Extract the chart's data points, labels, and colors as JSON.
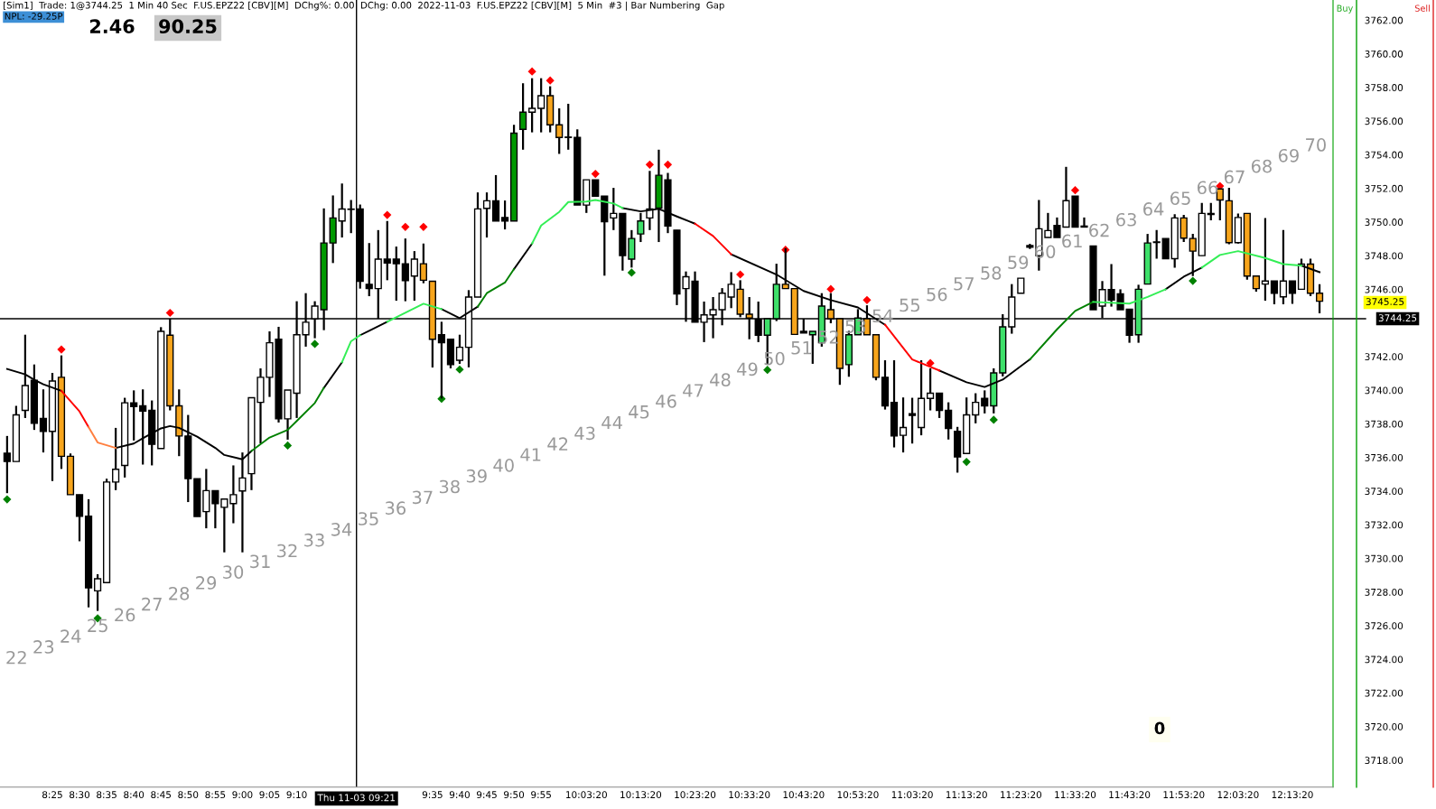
{
  "chart_data": {
    "type": "candlestick",
    "title": "[Sim1]  Trade: 1@3744.25  1 Min 40 Sec  F.US.EPZ22 [CBV][M]  DChg%: 0.00  DChg: 0.00  2022-11-03  F.US.EPZ22 [CBV][M]  5 Min  #3 | Bar Numbering  Gap",
    "subtitle": "NPL: -29.25P",
    "x": [
      8.2778,
      8.3056,
      8.3333,
      8.3611,
      8.3889,
      8.4167,
      8.4444,
      8.4722,
      8.5,
      8.5278,
      8.5556,
      8.5833,
      8.6111,
      8.6389,
      8.6667,
      8.6944,
      8.7222,
      8.75,
      8.7778,
      8.8056,
      8.8333,
      8.8611,
      8.8889,
      8.9167,
      8.9444,
      8.9722,
      9.0,
      9.0278,
      9.0556,
      9.0833,
      9.1111,
      9.1389,
      9.1667,
      9.1944,
      9.2222,
      9.25,
      9.2778,
      9.3056,
      9.3333,
      9.3611,
      9.3889,
      9.4167,
      9.4444,
      9.4722,
      9.5,
      9.5278,
      9.5556,
      9.5833,
      9.6111,
      9.6389,
      9.6667,
      9.6944,
      9.7222,
      9.75,
      9.7778,
      9.8056,
      9.8333,
      9.8611,
      9.8889,
      9.9167,
      9.9444,
      9.9722,
      10.0,
      10.0278,
      10.0556,
      10.0833,
      10.1111,
      10.1389,
      10.1667,
      10.1944,
      10.2222,
      10.25,
      10.2778,
      10.3056,
      10.3333,
      10.3611,
      10.3889,
      10.4167,
      10.4444,
      10.4722,
      10.5,
      10.5278,
      10.5556,
      10.5833,
      10.6111,
      10.6389,
      10.6667,
      10.6944,
      10.7222,
      10.75,
      10.7778,
      10.8056,
      10.8333,
      10.8611,
      10.8889,
      10.9167,
      10.9444,
      10.9722,
      11.0,
      11.0278,
      11.0556,
      11.0833,
      11.1111,
      11.1389,
      11.1667,
      11.1944,
      11.2222,
      11.25,
      11.2778,
      11.3056,
      11.3333,
      11.3611,
      11.3889,
      11.4167,
      11.4444,
      11.4722,
      11.5,
      11.5278,
      11.5556,
      11.5833,
      11.6111,
      11.6389,
      11.6667,
      11.6944,
      11.7222,
      11.75,
      11.7778,
      11.8056,
      11.8333,
      11.8611,
      11.8889,
      11.9167,
      11.9444,
      11.9722,
      12.0,
      12.0278,
      12.0556,
      12.0833,
      12.1111,
      12.1389,
      12.1667,
      12.1944,
      12.2222,
      12.25,
      12.2778,
      12.3056
    ],
    "ohlc": [
      [
        3736.26,
        3737.28,
        3733.88,
        3735.76
      ],
      [
        3735.76,
        3739.07,
        3735.76,
        3738.53
      ],
      [
        3738.8,
        3743.3,
        3738.35,
        3740.28
      ],
      [
        3740.59,
        3741.53,
        3737.64,
        3738.03
      ],
      [
        3738.32,
        3740.05,
        3736.3,
        3737.55
      ],
      [
        3737.55,
        3741.03,
        3734.6,
        3740.55
      ],
      [
        3740.77,
        3742.07,
        3735.32,
        3736.07
      ],
      [
        3736.07,
        3736.24,
        3733.79,
        3733.79
      ],
      [
        3733.79,
        3733.79,
        3731.02,
        3732.51
      ],
      [
        3732.51,
        3733.52,
        3727.09,
        3728.25
      ],
      [
        3728.07,
        3729.06,
        3726.88,
        3728.79
      ],
      [
        3728.56,
        3734.74,
        3728.56,
        3734.54
      ],
      [
        3734.54,
        3737.76,
        3734.06,
        3735.3
      ],
      [
        3735.53,
        3739.55,
        3734.81,
        3739.25
      ],
      [
        3739.25,
        3739.99,
        3737.01,
        3739.03
      ],
      [
        3739.07,
        3740.05,
        3735.58,
        3738.76
      ],
      [
        3738.8,
        3739.39,
        3735.53,
        3736.78
      ],
      [
        3736.53,
        3743.75,
        3736.53,
        3743.5
      ],
      [
        3743.27,
        3744.25,
        3738.8,
        3739.07
      ],
      [
        3739.07,
        3740.05,
        3736.08,
        3737.28
      ],
      [
        3737.28,
        3738.53,
        3733.35,
        3734.74
      ],
      [
        3734.74,
        3734.74,
        3732.49,
        3732.49
      ],
      [
        3732.78,
        3735.32,
        3731.79,
        3734.03
      ],
      [
        3734.03,
        3734.03,
        3731.79,
        3733.26
      ],
      [
        3733.04,
        3733.53,
        3730.36,
        3733.53
      ],
      [
        3733.26,
        3735.53,
        3732.09,
        3733.79
      ],
      [
        3734.01,
        3736.3,
        3730.36,
        3734.78
      ],
      [
        3735.04,
        3739.55,
        3734.06,
        3739.55
      ],
      [
        3739.28,
        3741.3,
        3736.83,
        3740.77
      ],
      [
        3740.77,
        3743.5,
        3739.6,
        3742.82
      ],
      [
        3743.03,
        3743.77,
        3738.08,
        3738.3
      ],
      [
        3738.3,
        3740.01,
        3737.06,
        3740.01
      ],
      [
        3739.82,
        3745.29,
        3738.35,
        3743.3
      ],
      [
        3743.3,
        3745.77,
        3742.59,
        3744.04
      ],
      [
        3744.25,
        3745.29,
        3743.09,
        3745.0
      ],
      [
        3744.79,
        3750.81,
        3743.57,
        3748.75
      ],
      [
        3748.75,
        3751.58,
        3747.56,
        3750.24
      ],
      [
        3750.06,
        3752.29,
        3749.08,
        3750.77
      ],
      [
        3750.75,
        3751.31,
        3749.34,
        3750.77
      ],
      [
        3750.77,
        3751.04,
        3746.04,
        3746.48
      ],
      [
        3746.3,
        3748.75,
        3745.59,
        3746.04
      ],
      [
        3746.04,
        3749.52,
        3744.25,
        3747.79
      ],
      [
        3747.79,
        3750.06,
        3746.54,
        3747.56
      ],
      [
        3747.79,
        3748.54,
        3745.32,
        3747.52
      ],
      [
        3747.52,
        3749.02,
        3745.29,
        3746.52
      ],
      [
        3746.79,
        3748.27,
        3745.32,
        3747.79
      ],
      [
        3747.52,
        3748.72,
        3746.36,
        3746.54
      ],
      [
        3746.48,
        3746.48,
        3741.35,
        3743.03
      ],
      [
        3743.3,
        3744.07,
        3739.51,
        3742.82
      ],
      [
        3743.03,
        3743.03,
        3741.3,
        3741.52
      ],
      [
        3741.78,
        3743.3,
        3741.57,
        3742.55
      ],
      [
        3742.55,
        3745.95,
        3741.36,
        3745.54
      ],
      [
        3745.54,
        3751.76,
        3745.54,
        3750.78
      ],
      [
        3750.81,
        3751.76,
        3749.08,
        3751.26
      ],
      [
        3751.26,
        3752.79,
        3750.06,
        3750.06
      ],
      [
        3750.27,
        3751.28,
        3749.56,
        3750.06
      ],
      [
        3750.06,
        3755.78,
        3750.06,
        3755.28
      ],
      [
        3755.51,
        3758.25,
        3754.3,
        3756.53
      ],
      [
        3756.53,
        3758.55,
        3755.33,
        3756.76
      ],
      [
        3756.76,
        3758.55,
        3755.33,
        3757.51
      ],
      [
        3757.51,
        3758.07,
        3755.33,
        3755.78
      ],
      [
        3755.78,
        3756.76,
        3754.05,
        3755.03
      ],
      [
        3755.05,
        3757.03,
        3754.3,
        3755.03
      ],
      [
        3755.03,
        3755.51,
        3751.01,
        3751.01
      ],
      [
        3751.01,
        3752.51,
        3750.54,
        3752.51
      ],
      [
        3752.51,
        3752.51,
        3751.54,
        3751.54
      ],
      [
        3751.54,
        3751.54,
        3746.81,
        3750.02
      ],
      [
        3750.24,
        3752.03,
        3749.52,
        3750.51
      ],
      [
        3750.51,
        3750.51,
        3747.11,
        3748.0
      ],
      [
        3747.79,
        3749.52,
        3747.29,
        3749.02
      ],
      [
        3749.29,
        3750.54,
        3748.81,
        3750.06
      ],
      [
        3750.24,
        3753.04,
        3749.52,
        3750.78
      ],
      [
        3750.83,
        3754.3,
        3748.81,
        3752.78
      ],
      [
        3752.51,
        3752.92,
        3749.34,
        3749.76
      ],
      [
        3749.52,
        3749.52,
        3745.06,
        3745.73
      ],
      [
        3746.04,
        3747.06,
        3744.07,
        3746.75
      ],
      [
        3746.48,
        3747.06,
        3744.04,
        3744.04
      ],
      [
        3744.04,
        3745.27,
        3742.86,
        3744.48
      ],
      [
        3744.48,
        3745.54,
        3743.09,
        3744.79
      ],
      [
        3744.79,
        3746.07,
        3743.86,
        3745.77
      ],
      [
        3745.54,
        3747.02,
        3744.88,
        3746.3
      ],
      [
        3746.0,
        3746.54,
        3744.34,
        3744.52
      ],
      [
        3744.52,
        3745.54,
        3743.03,
        3744.29
      ],
      [
        3744.21,
        3745.27,
        3742.86,
        3743.27
      ],
      [
        3743.27,
        3744.25,
        3741.57,
        3744.25
      ],
      [
        3744.25,
        3747.52,
        3744.11,
        3746.3
      ],
      [
        3746.3,
        3748.45,
        3746.04,
        3746.04
      ],
      [
        3746.04,
        3746.04,
        3743.32,
        3743.32
      ],
      [
        3743.5,
        3744.25,
        3743.4,
        3743.4
      ],
      [
        3743.3,
        3743.5,
        3741.57,
        3743.5
      ],
      [
        3742.82,
        3745.77,
        3742.59,
        3745.0
      ],
      [
        3744.79,
        3745.77,
        3743.98,
        3744.25
      ],
      [
        3744.25,
        3744.25,
        3740.32,
        3741.3
      ],
      [
        3741.52,
        3743.53,
        3740.8,
        3743.3
      ],
      [
        3743.3,
        3744.82,
        3743.3,
        3744.29
      ],
      [
        3744.25,
        3745.05,
        3743.3,
        3743.3
      ],
      [
        3743.3,
        3743.3,
        3740.59,
        3740.77
      ],
      [
        3740.77,
        3741.78,
        3738.85,
        3739.07
      ],
      [
        3739.28,
        3741.78,
        3736.6,
        3737.28
      ],
      [
        3737.32,
        3739.57,
        3736.3,
        3737.78
      ],
      [
        3738.6,
        3739.55,
        3736.83,
        3738.5
      ],
      [
        3737.78,
        3741.78,
        3737.32,
        3739.51
      ],
      [
        3739.51,
        3741.3,
        3738.8,
        3739.82
      ],
      [
        3739.82,
        3739.82,
        3738.35,
        3738.8
      ],
      [
        3738.8,
        3739.28,
        3737.07,
        3737.73
      ],
      [
        3737.55,
        3737.82,
        3735.1,
        3736.03
      ],
      [
        3736.24,
        3739.57,
        3736.24,
        3738.53
      ],
      [
        3738.53,
        3739.82,
        3738.03,
        3739.28
      ],
      [
        3739.51,
        3739.99,
        3738.62,
        3739.07
      ],
      [
        3739.07,
        3741.3,
        3738.62,
        3741.03
      ],
      [
        3741.03,
        3744.52,
        3740.82,
        3743.77
      ],
      [
        3743.77,
        3746.31,
        3743.36,
        3745.54
      ],
      [
        3745.77,
        3746.66,
        3745.77,
        3746.66
      ],
      [
        3748.6,
        3748.7,
        3748.4,
        3748.5
      ],
      [
        3748.0,
        3751.31,
        3747.11,
        3749.6
      ],
      [
        3749.08,
        3750.54,
        3749.08,
        3749.49
      ],
      [
        3749.79,
        3750.27,
        3749.08,
        3749.08
      ],
      [
        3749.7,
        3753.28,
        3749.7,
        3751.27
      ],
      [
        3751.54,
        3751.54,
        3749.7,
        3749.7
      ],
      [
        3749.76,
        3750.27,
        3749.7,
        3749.7
      ],
      [
        3748.58,
        3748.58,
        3744.79,
        3744.79
      ],
      [
        3745.0,
        3746.49,
        3744.29,
        3745.98
      ],
      [
        3745.98,
        3747.5,
        3744.97,
        3745.36
      ],
      [
        3745.73,
        3746.0,
        3744.79,
        3744.79
      ],
      [
        3744.82,
        3744.82,
        3742.82,
        3743.27
      ],
      [
        3743.3,
        3746.27,
        3742.82,
        3746.0
      ],
      [
        3746.31,
        3749.29,
        3746.31,
        3748.75
      ],
      [
        3748.82,
        3749.52,
        3747.82,
        3748.78
      ],
      [
        3749.02,
        3749.02,
        3747.82,
        3747.82
      ],
      [
        3747.82,
        3750.47,
        3747.29,
        3750.24
      ],
      [
        3750.24,
        3750.42,
        3748.81,
        3749.04
      ],
      [
        3749.02,
        3749.29,
        3746.79,
        3748.27
      ],
      [
        3748.0,
        3751.13,
        3748.0,
        3750.51
      ],
      [
        3750.51,
        3751.13,
        3750.1,
        3750.45
      ],
      [
        3751.97,
        3751.97,
        3750.1,
        3751.31
      ],
      [
        3751.26,
        3752.03,
        3748.68,
        3748.77
      ],
      [
        3748.77,
        3750.51,
        3748.72,
        3750.27
      ],
      [
        3750.51,
        3750.51,
        3746.57,
        3746.79
      ],
      [
        3746.79,
        3746.79,
        3745.86,
        3746.04
      ],
      [
        3746.31,
        3750.24,
        3745.32,
        3746.49
      ],
      [
        3746.49,
        3746.49,
        3745.11,
        3745.77
      ],
      [
        3745.55,
        3749.52,
        3745.11,
        3746.49
      ],
      [
        3746.49,
        3746.49,
        3745.14,
        3745.77
      ],
      [
        3746.0,
        3747.82,
        3746.0,
        3747.5
      ],
      [
        3747.5,
        3747.82,
        3745.59,
        3745.77
      ],
      [
        3745.77,
        3746.31,
        3744.57,
        3745.29
      ]
    ],
    "colors": [
      "#000000",
      "#ffffff",
      "#ffffff",
      "#000000",
      "#000000",
      "#ffffff",
      "#f7a51c",
      "#f7a51c",
      "#000000",
      "#000000",
      "#ffffff",
      "#ffffff",
      "#ffffff",
      "#ffffff",
      "#000000",
      "#000000",
      "#000000",
      "#ffffff",
      "#f7a51c",
      "#f7a51c",
      "#000000",
      "#000000",
      "#ffffff",
      "#000000",
      "#ffffff",
      "#ffffff",
      "#ffffff",
      "#ffffff",
      "#ffffff",
      "#ffffff",
      "#000000",
      "#ffffff",
      "#ffffff",
      "#ffffff",
      "#ffffff",
      "#009900",
      "#009900",
      "#ffffff",
      "#ffffff",
      "#000000",
      "#000000",
      "#ffffff",
      "#000000",
      "#000000",
      "#000000",
      "#ffffff",
      "#f7a51c",
      "#f7a51c",
      "#000000",
      "#000000",
      "#ffffff",
      "#ffffff",
      "#ffffff",
      "#ffffff",
      "#000000",
      "#000000",
      "#009900",
      "#009900",
      "#ffffff",
      "#ffffff",
      "#f7a51c",
      "#f7a51c",
      "#000000",
      "#000000",
      "#ffffff",
      "#000000",
      "#000000",
      "#ffffff",
      "#000000",
      "#3ee06a",
      "#3ee06a",
      "#ffffff",
      "#009900",
      "#000000",
      "#000000",
      "#ffffff",
      "#000000",
      "#ffffff",
      "#ffffff",
      "#ffffff",
      "#ffffff",
      "#f7a51c",
      "#f7a51c",
      "#000000",
      "#3ee06a",
      "#3ee06a",
      "#f7a51c",
      "#f7a51c",
      "#000000",
      "#3ee06a",
      "#3ee06a",
      "#f7a51c",
      "#f7a51c",
      "#3ee06a",
      "#3ee06a",
      "#f7a51c",
      "#f7a51c",
      "#000000",
      "#000000",
      "#ffffff",
      "#000000",
      "#ffffff",
      "#ffffff",
      "#000000",
      "#000000",
      "#000000",
      "#ffffff",
      "#ffffff",
      "#000000",
      "#3ee06a",
      "#3ee06a",
      "#ffffff",
      "#ffffff",
      "#000000",
      "#ffffff",
      "#ffffff",
      "#000000",
      "#ffffff",
      "#000000",
      "#000000",
      "#000000",
      "#ffffff",
      "#000000",
      "#000000",
      "#000000",
      "#3ee06a",
      "#3ee06a",
      "#000000",
      "#000000",
      "#ffffff",
      "#f7a51c",
      "#f7a51c",
      "#ffffff",
      "#000000",
      "#f7a51c",
      "#f7a51c",
      "#ffffff",
      "#f7a51c",
      "#f7a51c",
      "#ffffff",
      "#000000",
      "#ffffff",
      "#000000",
      "#ffffff",
      "#f7a51c",
      "#f7a51c"
    ],
    "series": [
      {
        "type": "line",
        "color": "#000000",
        "x": [
          8.2778,
          8.3333,
          8.3611,
          8.3889,
          8.4444,
          8.5,
          8.5278,
          8.5556,
          8.6111,
          8.6667,
          8.6944,
          8.75,
          8.7778,
          8.8056,
          8.8611,
          8.9167,
          8.9444,
          9.0,
          9.0278,
          9.0833,
          9.1389,
          9.1667,
          9.2222,
          9.25,
          9.3056,
          9.3333,
          9.3611,
          9.3889,
          9.4444,
          9.5,
          9.5278,
          9.5556,
          9.6111,
          9.6667,
          9.7222,
          9.75,
          9.8056,
          9.8333,
          9.8889,
          9.9167,
          9.9722,
          10.0,
          10.0556,
          10.0833,
          10.1389,
          10.1667,
          10.2222,
          10.2778,
          10.3333,
          10.3889,
          10.4444,
          10.5,
          10.6389,
          10.7222,
          10.8056,
          10.8889,
          10.9722,
          11.0556,
          11.1389,
          11.2222,
          11.2778,
          11.3333,
          11.4167,
          11.5,
          11.5556,
          11.6111,
          11.7222,
          11.7778,
          11.8333,
          11.8889,
          11.9444,
          12.0,
          12.0556,
          12.1389,
          12.1944,
          12.25,
          12.3056
        ],
        "values": [
          3741.26,
          3740.94,
          3740.62,
          3740.35,
          3739.96,
          null,
          null,
          null,
          3736.57,
          3736.83,
          3737.14,
          3737.73,
          3737.87,
          3737.76,
          3737.24,
          3736.57,
          3736.15,
          3735.89,
          3736.39,
          null,
          null,
          null,
          null,
          3740.14,
          3741.66,
          null,
          3743.27,
          3743.53,
          3744.07,
          null,
          null,
          null,
          3744.82,
          3744.29,
          3744.97,
          null,
          null,
          3747.2,
          3748.72,
          null,
          null,
          null,
          null,
          null,
          null,
          3750.83,
          3750.63,
          3750.78,
          3750.33,
          3749.9,
          null,
          3748.08,
          3746.88,
          3745.9,
          3745.36,
          3744.92,
          3743.89,
          null,
          3741.17,
          3740.47,
          3740.19,
          3740.63,
          3741.83,
          null,
          null,
          null,
          null,
          null,
          3746.0,
          3746.75,
          3747.29,
          null,
          null,
          null,
          null,
          3747.41,
          3747.02
        ]
      },
      {
        "type": "line",
        "color": "#ff0000",
        "x": [
          8.4444,
          8.5,
          8.5278,
          9.0,
          10.3889,
          10.4444,
          10.5,
          10.7,
          10.9722,
          11.0556,
          11.1389
        ],
        "values": [
          3739.96,
          3738.74,
          3737.81,
          null,
          3749.9,
          3749.17,
          3748.08,
          null,
          3743.89,
          3741.83,
          3741.17
        ]
      },
      {
        "type": "line",
        "color": "#ff7f3f",
        "x": [
          8.5278,
          8.5556,
          8.6111
        ],
        "values": [
          3737.81,
          3736.89,
          3736.57
        ]
      },
      {
        "type": "line",
        "color": "#008000",
        "x": [
          9.0278,
          9.0833,
          9.1389,
          9.1667,
          9.2222,
          9.25,
          9.5,
          9.7222,
          9.75,
          9.8056,
          9.8333,
          10.5,
          11.4167,
          11.5,
          11.5556,
          11.6111
        ],
        "values": [
          3736.39,
          3737.19,
          3737.64,
          3738.17,
          3739.24,
          3740.14,
          null,
          3744.97,
          3745.77,
          3746.4,
          3747.2,
          null,
          3741.83,
          3743.62,
          3744.71,
          3745.25
        ]
      },
      {
        "type": "line",
        "color": "#33ee55",
        "x": [
          9.3056,
          9.3333,
          9.3611,
          9.375,
          9.4444,
          9.5,
          9.5278,
          9.5556,
          9.6111,
          9.7,
          9.8889,
          9.9167,
          9.9722,
          10.0,
          10.0556,
          10.0833,
          10.1389,
          10.1667,
          11.0,
          11.6111,
          11.7222,
          11.7778,
          11.8333,
          11.89,
          11.9444,
          12.0,
          12.0556,
          12.1389,
          12.1944,
          12.25
        ],
        "values": [
          3741.66,
          3742.91,
          3743.27,
          null,
          3744.07,
          3744.61,
          3744.87,
          3745.14,
          3744.82,
          null,
          3748.72,
          3749.79,
          3750.6,
          3751.19,
          3751.22,
          3751.31,
          3751.1,
          3750.83,
          null,
          3745.25,
          3745.15,
          3745.55,
          3746.0,
          null,
          3747.29,
          3748.04,
          3748.27,
          3747.86,
          3747.5,
          3747.41
        ]
      },
      {
        "type": "scatter",
        "marker": "diamond",
        "color": "#ff0000",
        "x": [
          8.4444,
          8.7778,
          9.4444,
          9.5,
          9.5556,
          9.8889,
          9.9444,
          10.0833,
          10.25,
          10.3056,
          10.5278,
          10.6667,
          10.8056,
          10.9167,
          11.1111,
          11.5556,
          12.0
        ],
        "values": [
          3742.42,
          3744.6,
          3750.42,
          3749.71,
          3749.71,
          3758.95,
          3758.41,
          3752.86,
          3753.41,
          3753.41,
          3746.88,
          3748.35,
          3746.01,
          3745.36,
          3741.61,
          3751.89,
          3752.14
        ]
      },
      {
        "type": "scatter",
        "marker": "diamond",
        "color": "#008000",
        "x": [
          8.2778,
          8.5556,
          9.1389,
          9.2222,
          9.6111,
          9.6667,
          10.1944,
          10.6111,
          11.2222,
          11.3056,
          11.9167
        ],
        "values": [
          3733.51,
          3726.44,
          3736.71,
          3742.75,
          3739.49,
          3741.23,
          3746.99,
          3741.21,
          3735.74,
          3738.24,
          3746.5
        ]
      }
    ],
    "xlim": [
      8.256,
      12.347
    ],
    "ylim": [
      3716.4,
      3763.2
    ],
    "xticks": [
      {
        "value": 8.4167,
        "label": "8:25"
      },
      {
        "value": 8.5,
        "label": "8:30"
      },
      {
        "value": 8.5833,
        "label": "8:35"
      },
      {
        "value": 8.6667,
        "label": "8:40"
      },
      {
        "value": 8.75,
        "label": "8:45"
      },
      {
        "value": 8.8333,
        "label": "8:50"
      },
      {
        "value": 8.9167,
        "label": "8:55"
      },
      {
        "value": 9.0,
        "label": "9:00"
      },
      {
        "value": 9.0833,
        "label": "9:05"
      },
      {
        "value": 9.1667,
        "label": "9:10"
      },
      {
        "value": 9.5833,
        "label": "9:35"
      },
      {
        "value": 9.6667,
        "label": "9:40"
      },
      {
        "value": 9.75,
        "label": "9:45"
      },
      {
        "value": 9.8333,
        "label": "9:50"
      },
      {
        "value": 9.9167,
        "label": "9:55"
      },
      {
        "value": 10.0556,
        "label": "10:03:20"
      },
      {
        "value": 10.2222,
        "label": "10:13:20"
      },
      {
        "value": 10.3889,
        "label": "10:23:20"
      },
      {
        "value": 10.5556,
        "label": "10:33:20"
      },
      {
        "value": 10.7222,
        "label": "10:43:20"
      },
      {
        "value": 10.8889,
        "label": "10:53:20"
      },
      {
        "value": 11.0556,
        "label": "11:03:20"
      },
      {
        "value": 11.2222,
        "label": "11:13:20"
      },
      {
        "value": 11.3889,
        "label": "11:23:20"
      },
      {
        "value": 11.5556,
        "label": "11:33:20"
      },
      {
        "value": 11.7222,
        "label": "11:43:20"
      },
      {
        "value": 11.8889,
        "label": "11:53:20"
      },
      {
        "value": 12.0556,
        "label": "12:03:20"
      },
      {
        "value": 12.2222,
        "label": "12:13:20"
      }
    ],
    "yticks": [
      {
        "value": 3718,
        "label": "3718.00"
      },
      {
        "value": 3720,
        "label": "3720.00"
      },
      {
        "value": 3722,
        "label": "3722.00"
      },
      {
        "value": 3724,
        "label": "3724.00"
      },
      {
        "value": 3726,
        "label": "3726.00"
      },
      {
        "value": 3728,
        "label": "3728.00"
      },
      {
        "value": 3730,
        "label": "3730.00"
      },
      {
        "value": 3732,
        "label": "3732.00"
      },
      {
        "value": 3734,
        "label": "3734.00"
      },
      {
        "value": 3736,
        "label": "3736.00"
      },
      {
        "value": 3738,
        "label": "3738.00"
      },
      {
        "value": 3740,
        "label": "3740.00"
      },
      {
        "value": 3742,
        "label": "3742.00"
      },
      {
        "value": 3746,
        "label": "3746.00"
      },
      {
        "value": 3748,
        "label": "3748.00"
      },
      {
        "value": 3750,
        "label": "3750.00"
      },
      {
        "value": 3752,
        "label": "3752.00"
      },
      {
        "value": 3754,
        "label": "3754.00"
      },
      {
        "value": 3756,
        "label": "3756.00"
      },
      {
        "value": 3758,
        "label": "3758.00"
      },
      {
        "value": 3760,
        "label": "3760.00"
      },
      {
        "value": 3762,
        "label": "3762.00"
      }
    ],
    "ref_lines": [
      {
        "axis": "y",
        "value": 3744.25,
        "label": "3744.25",
        "color": "#000000"
      },
      {
        "axis": "x",
        "value": 9.35,
        "label": "Thu 11-03 09:21",
        "color": "#000000"
      }
    ],
    "annotations": [
      "2.46",
      "90.25",
      "0",
      "Buy",
      "Sell",
      "3745.25",
      "22",
      "23",
      "24",
      "25",
      "26",
      "27",
      "28",
      "29",
      "30",
      "31",
      "32",
      "33",
      "34",
      "35",
      "36",
      "37",
      "38",
      "39",
      "40",
      "41",
      "42",
      "43",
      "44",
      "45",
      "46",
      "47",
      "48",
      "49",
      "50",
      "51",
      "52",
      "53",
      "54",
      "55",
      "56",
      "57",
      "58",
      "59",
      "60",
      "61",
      "62",
      "63",
      "64",
      "65",
      "66",
      "67",
      "68",
      "69",
      "70"
    ]
  }
}
